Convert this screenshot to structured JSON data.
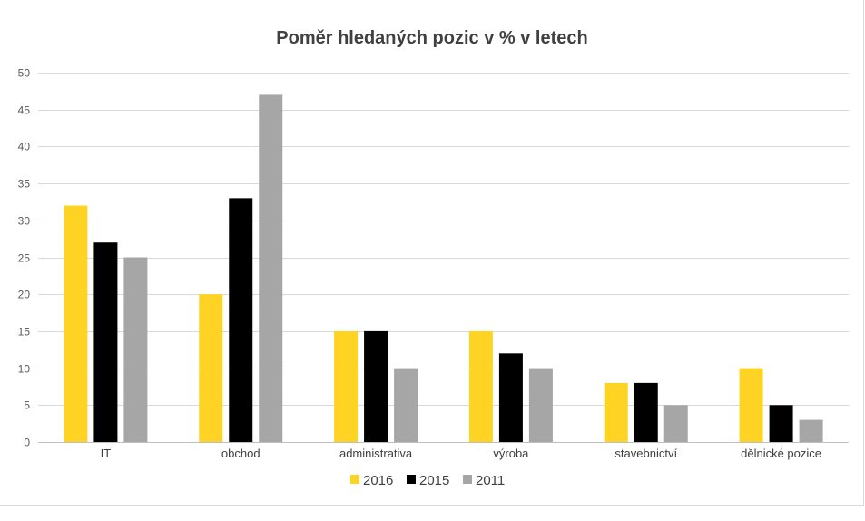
{
  "chart_data": {
    "type": "bar",
    "title": "Poměr hledaných pozic v % v letech",
    "xlabel": "",
    "ylabel": "",
    "ylim": [
      0,
      50
    ],
    "ytick_step": 5,
    "grid": true,
    "legend_position": "bottom",
    "categories": [
      "IT",
      "obchod",
      "administrativa",
      "výroba",
      "stavebnictví",
      "dělnické pozice"
    ],
    "series": [
      {
        "name": "2016",
        "color": "#ffd323",
        "values": [
          32,
          20,
          15,
          15,
          8,
          10
        ]
      },
      {
        "name": "2015",
        "color": "#000000",
        "values": [
          27,
          33,
          15,
          12,
          8,
          5
        ]
      },
      {
        "name": "2011",
        "color": "#a6a6a6",
        "values": [
          25,
          47,
          10,
          10,
          5,
          3
        ]
      }
    ]
  }
}
